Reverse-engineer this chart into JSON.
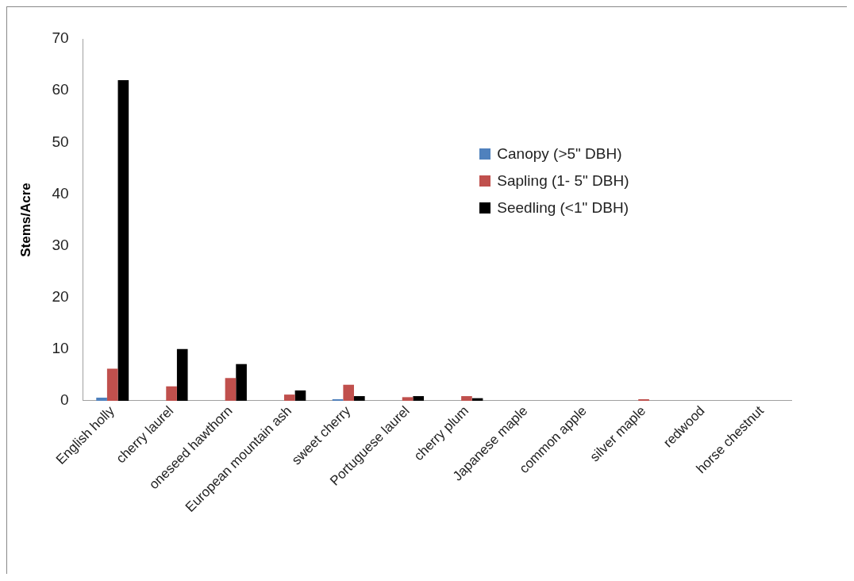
{
  "chart_data": {
    "type": "bar",
    "ylabel": "Stems/Acre",
    "categories": [
      "English holly",
      "cherry laurel",
      "oneseed hawthorn",
      "European mountain ash",
      "sweet cherry",
      "Portuguese laurel",
      "cherry plum",
      "Japanese maple",
      "common apple",
      "silver maple",
      "redwood",
      "horse chestnut"
    ],
    "series": [
      {
        "name": "Canopy (>5\" DBH)",
        "color": "#4f81bd",
        "values": [
          0.6,
          0,
          0,
          0,
          0.3,
          0,
          0,
          0,
          0,
          0,
          0,
          0
        ]
      },
      {
        "name": "Sapling (1- 5\" DBH)",
        "color": "#c0504d",
        "values": [
          6.2,
          2.8,
          4.4,
          1.2,
          3.1,
          0.7,
          0.9,
          0,
          0,
          0.3,
          0,
          0
        ]
      },
      {
        "name": "Seedling (<1\" DBH)",
        "color": "#000000",
        "values": [
          62,
          10,
          7.1,
          2.0,
          0.9,
          0.9,
          0.5,
          0,
          0,
          0,
          0,
          0
        ]
      }
    ],
    "ylim": [
      0,
      70
    ],
    "yticks": [
      0,
      10,
      20,
      30,
      40,
      50,
      60,
      70
    ],
    "grid": false,
    "legend": "right"
  }
}
